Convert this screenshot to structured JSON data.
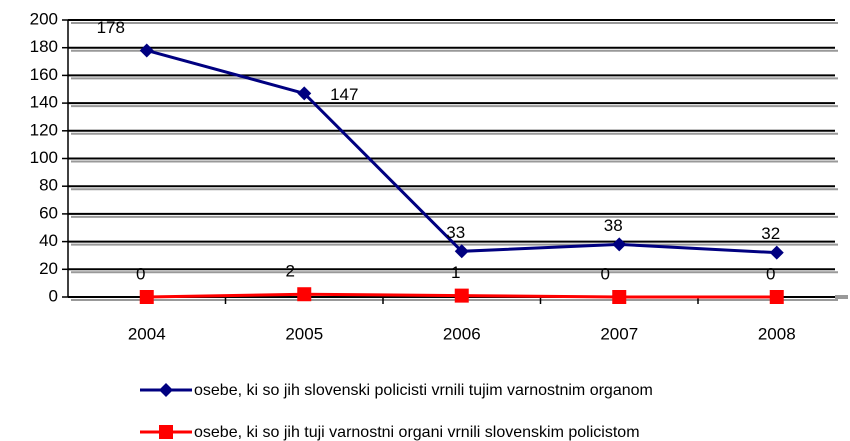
{
  "chart_data": {
    "type": "line",
    "categories": [
      "2004",
      "2005",
      "2006",
      "2007",
      "2008"
    ],
    "series": [
      {
        "name": "osebe, ki so jih slovenski policisti vrnili tujim varnostnim organom",
        "color": "#000080",
        "marker": "diamond",
        "values": [
          178,
          147,
          33,
          38,
          32
        ]
      },
      {
        "name": "osebe, ki so jih tuji varnostni organi vrnili slovenskim policistom",
        "color": "#ff0000",
        "marker": "square",
        "values": [
          0,
          2,
          1,
          0,
          0
        ]
      }
    ],
    "ylim": [
      0,
      200
    ],
    "yticks": [
      0,
      20,
      40,
      60,
      80,
      100,
      120,
      140,
      160,
      180,
      200
    ],
    "grid": true,
    "data_labels": true,
    "legend": "bottom"
  }
}
